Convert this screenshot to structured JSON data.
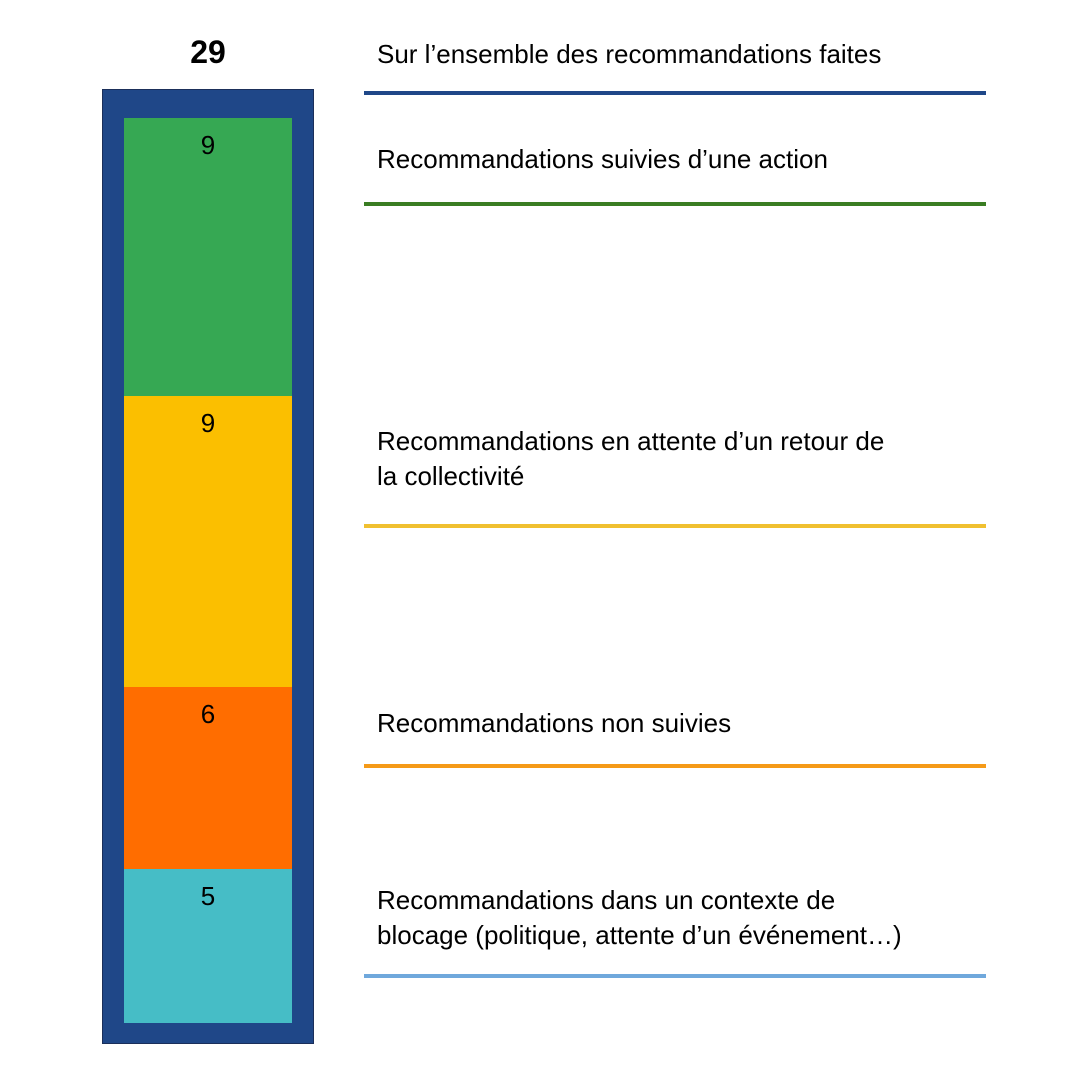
{
  "chart_data": {
    "type": "bar",
    "orientation": "stacked-vertical",
    "total": {
      "value": 29,
      "label": "29",
      "description": "Sur l’ensemble des recommandations faites",
      "color": "#1f4788"
    },
    "series": [
      {
        "name": "Recommandations suivies d’une action",
        "value": 9,
        "label": "9",
        "color": "#36a853",
        "line_color": "#3a7d22"
      },
      {
        "name": "Recommandations en attente d’un retour de\nla collectivité",
        "value": 9,
        "label": "9",
        "color": "#fbbf00",
        "line_color": "#f0c030"
      },
      {
        "name": "Recommandations non suivies",
        "value": 6,
        "label": "6",
        "color": "#ff6d00",
        "line_color": "#f59a18"
      },
      {
        "name": "Recommandations dans un contexte de\nblocage (politique, attente d’un événement…)",
        "value": 5,
        "label": "5",
        "color": "#46bdc6",
        "line_color": "#6fa8dc"
      }
    ],
    "legend": "right"
  }
}
